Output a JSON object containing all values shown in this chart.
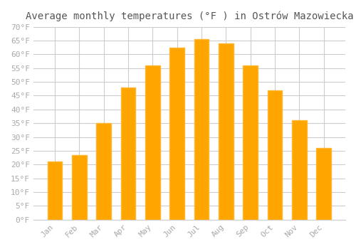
{
  "title": "Average monthly temperatures (°F ) in Ostrów Mazowiecka",
  "months": [
    "Jan",
    "Feb",
    "Mar",
    "Apr",
    "May",
    "Jun",
    "Jul",
    "Aug",
    "Sep",
    "Oct",
    "Nov",
    "Dec"
  ],
  "values": [
    21,
    23.5,
    35,
    48,
    56,
    62.5,
    65.5,
    64,
    56,
    47,
    36,
    26
  ],
  "bar_color": "#FFA500",
  "bar_edge_color": "#FFB733",
  "background_color": "#FFFFFF",
  "grid_color": "#CCCCCC",
  "tick_color": "#AAAAAA",
  "text_color": "#555555",
  "ylim": [
    0,
    70
  ],
  "yticks": [
    0,
    5,
    10,
    15,
    20,
    25,
    30,
    35,
    40,
    45,
    50,
    55,
    60,
    65,
    70
  ],
  "ytick_labels": [
    "0°F",
    "5°F",
    "10°F",
    "15°F",
    "20°F",
    "25°F",
    "30°F",
    "35°F",
    "40°F",
    "45°F",
    "50°F",
    "55°F",
    "60°F",
    "65°F",
    "70°F"
  ],
  "title_fontsize": 10,
  "tick_fontsize": 8,
  "font_family": "monospace"
}
